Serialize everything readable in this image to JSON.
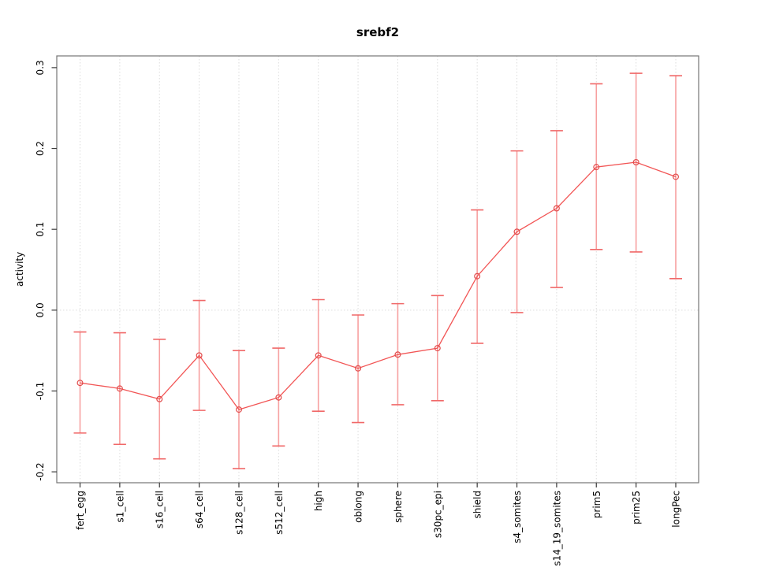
{
  "figure": {
    "title": "srebf2",
    "y_axis_label": "activity"
  },
  "chart_data": {
    "type": "line",
    "title": "srebf2",
    "xlabel": "",
    "ylabel": "activity",
    "categories": [
      "fert_egg",
      "s1_cell",
      "s16_cell",
      "s64_cell",
      "s128_cell",
      "s512_cell",
      "high",
      "oblong",
      "sphere",
      "s30pc_epi",
      "shield",
      "s4_somites",
      "s14_19_somites",
      "prim5",
      "prim25",
      "longPec"
    ],
    "series": [
      {
        "name": "srebf2 activity",
        "values": [
          -0.09,
          -0.097,
          -0.11,
          -0.056,
          -0.123,
          -0.108,
          -0.056,
          -0.072,
          -0.055,
          -0.047,
          0.042,
          0.097,
          0.126,
          0.177,
          0.183,
          0.165
        ]
      }
    ],
    "error_bars": {
      "upper": [
        -0.027,
        -0.028,
        -0.036,
        0.012,
        -0.05,
        -0.047,
        0.013,
        -0.006,
        0.008,
        0.018,
        0.124,
        0.197,
        0.222,
        0.28,
        0.293,
        0.29
      ],
      "lower": [
        -0.152,
        -0.166,
        -0.184,
        -0.124,
        -0.196,
        -0.168,
        -0.125,
        -0.139,
        -0.117,
        -0.112,
        -0.041,
        -0.003,
        0.028,
        0.075,
        0.072,
        0.039
      ]
    },
    "yticks": {
      "values": [
        -0.2,
        -0.1,
        0.0,
        0.1,
        0.2,
        0.3
      ],
      "labels": [
        "-0.2",
        "-0.1",
        "0.0",
        "0.1",
        "0.2",
        "0.3"
      ]
    },
    "ylim": [
      -0.2135,
      0.3145
    ],
    "x_range": [
      0.414,
      16.576
    ],
    "grid": {
      "vertical_per_category": true,
      "horizontal_zero_line": true,
      "style": "dotted"
    },
    "legend": "none",
    "marker": "open-circle",
    "colors": {
      "background": "#ffffff",
      "frame": "#757575",
      "axis_tick": "#3a3a3a",
      "tick_label": "#000000",
      "grid": "#dcdcdc",
      "series_line": "#f25555",
      "marker_stroke": "#e24c4c",
      "error_stem": "#f7a0a0",
      "error_cap": "#f06868"
    }
  }
}
